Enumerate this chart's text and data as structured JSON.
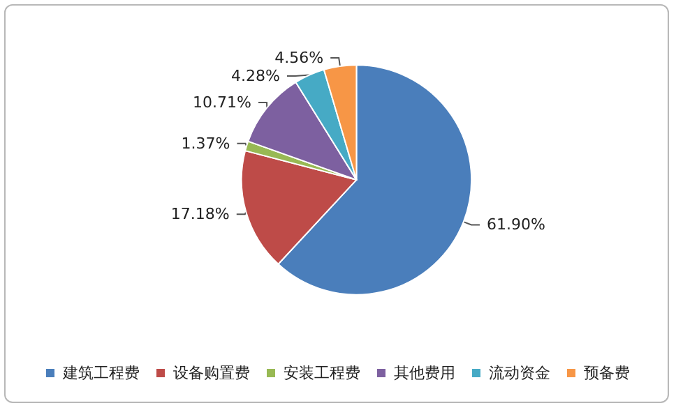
{
  "chart_data": {
    "type": "pie",
    "categories": [
      "建筑工程费",
      "设备购置费",
      "安装工程费",
      "其他费用",
      "流动资金",
      "预备费"
    ],
    "values": [
      61.9,
      17.18,
      1.37,
      10.71,
      4.28,
      4.56
    ],
    "value_labels": [
      "61.90%",
      "17.18%",
      "1.37%",
      "10.71%",
      "4.28%",
      "4.56%"
    ],
    "colors": [
      "#4a7ebb",
      "#be4b48",
      "#98b954",
      "#7d60a0",
      "#46aac5",
      "#f79646"
    ],
    "legend": "bottom"
  }
}
